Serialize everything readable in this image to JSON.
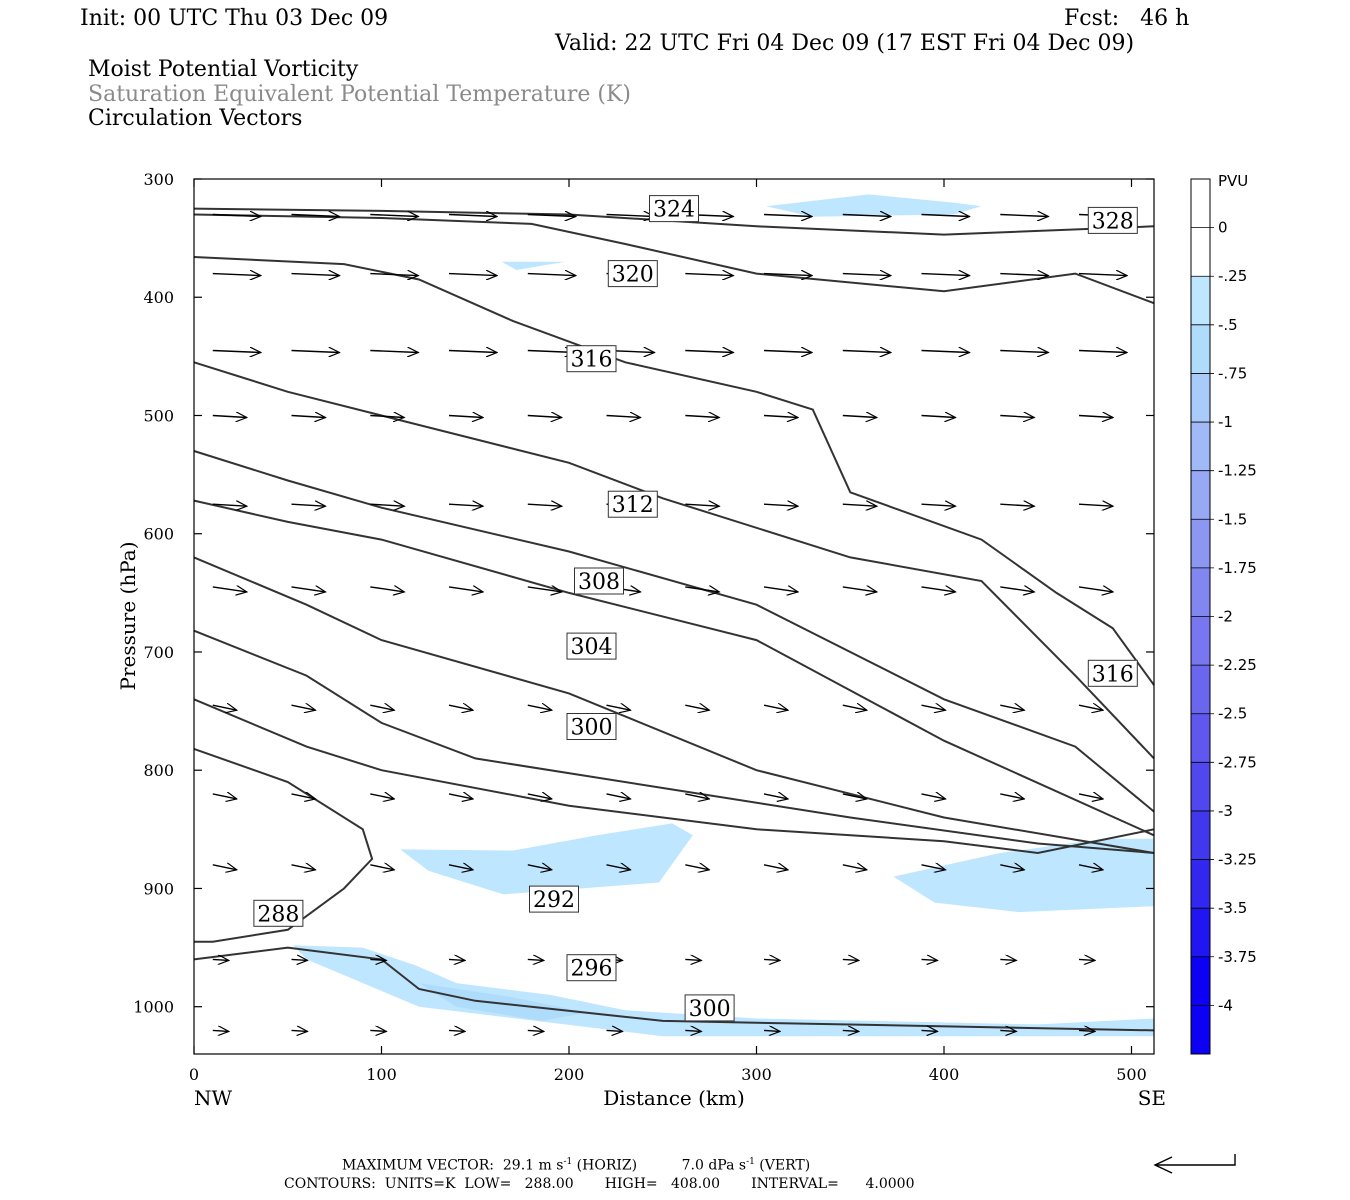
{
  "header": {
    "init": "Init: 00 UTC Thu 03 Dec 09",
    "fcst": "Fcst:   46 h",
    "valid": "Valid: 22 UTC Fri 04 Dec 09 (17 EST Fri 04 Dec 09)",
    "field1": "Moist Potential Vorticity",
    "field2": "Saturation Equivalent Potential Temperature (K)",
    "field3": "Circulation Vectors"
  },
  "footer": {
    "max_vector_label": "MAXIMUM VECTOR:",
    "max_vector_horiz": "29.1 m s",
    "horiz_tag": "(HORIZ)",
    "max_vector_vert": "7.0 dPa s",
    "vert_tag": "(VERT)",
    "exp": "-1",
    "contours": "CONTOURS:  UNITS=K  LOW=   288.00       HIGH=   408.00       INTERVAL=      4.0000"
  },
  "colors": {
    "contour": "#333333",
    "pv_shades": [
      "#ffffff",
      "#ffffff",
      "#bfe6ff",
      "#b0dcfc",
      "#a8cbfa",
      "#a0b9f7",
      "#97a8f5",
      "#8c97f2",
      "#8286f1",
      "#7876f0",
      "#6b66ee",
      "#5f57ee",
      "#5048ee",
      "#4138ee",
      "#3227ef",
      "#2016f2",
      "#0c00f5"
    ]
  },
  "chart_data": {
    "type": "contour",
    "xlabel": "Distance (km)",
    "ylabel": "Pressure (hPa)",
    "xlim": [
      0,
      512
    ],
    "ylim": [
      300,
      1040
    ],
    "x_ticks": [
      0,
      100,
      200,
      300,
      400,
      500
    ],
    "y_ticks": [
      300,
      400,
      500,
      600,
      700,
      800,
      900,
      1000
    ],
    "x_end_labels": [
      "NW",
      "SE"
    ],
    "colorbar": {
      "title": "PVU",
      "labels": [
        "0",
        "-.25",
        "-.5",
        "-.75",
        "-1",
        "-1.25",
        "-1.5",
        "-1.75",
        "-2",
        "-2.25",
        "-2.5",
        "-2.75",
        "-3",
        "-3.25",
        "-3.5",
        "-3.75",
        "-4"
      ]
    },
    "contour_labels": [
      {
        "text": "324",
        "x": 256,
        "p": 325
      },
      {
        "text": "328",
        "x": 490,
        "p": 335
      },
      {
        "text": "320",
        "x": 234,
        "p": 380
      },
      {
        "text": "316",
        "x": 212,
        "p": 452
      },
      {
        "text": "312",
        "x": 234,
        "p": 575
      },
      {
        "text": "308",
        "x": 216,
        "p": 640
      },
      {
        "text": "304",
        "x": 212,
        "p": 695
      },
      {
        "text": "300",
        "x": 212,
        "p": 763
      },
      {
        "text": "316",
        "x": 490,
        "p": 718
      },
      {
        "text": "288",
        "x": 45,
        "p": 921
      },
      {
        "text": "292",
        "x": 192,
        "p": 909
      },
      {
        "text": "296",
        "x": 212,
        "p": 967
      },
      {
        "text": "300",
        "x": 275,
        "p": 1001
      }
    ],
    "theta_e_contours": [
      {
        "level": 328,
        "points": [
          [
            0,
            325
          ],
          [
            100,
            327
          ],
          [
            200,
            330
          ],
          [
            300,
            340
          ],
          [
            400,
            347
          ],
          [
            512,
            340
          ]
        ]
      },
      {
        "level": 324,
        "points": [
          [
            0,
            330
          ],
          [
            100,
            333
          ],
          [
            180,
            338
          ],
          [
            230,
            355
          ],
          [
            300,
            380
          ],
          [
            400,
            395
          ],
          [
            470,
            380
          ],
          [
            512,
            405
          ]
        ]
      },
      {
        "level": 320,
        "points": [
          [
            0,
            366
          ],
          [
            80,
            372
          ],
          [
            120,
            385
          ],
          [
            170,
            420
          ],
          [
            230,
            455
          ],
          [
            300,
            480
          ],
          [
            330,
            495
          ],
          [
            350,
            565
          ],
          [
            420,
            605
          ],
          [
            460,
            650
          ],
          [
            490,
            680
          ],
          [
            512,
            728
          ]
        ]
      },
      {
        "level": 316,
        "points": [
          [
            0,
            455
          ],
          [
            50,
            480
          ],
          [
            100,
            500
          ],
          [
            200,
            540
          ],
          [
            250,
            570
          ],
          [
            350,
            620
          ],
          [
            420,
            640
          ],
          [
            470,
            720
          ],
          [
            512,
            790
          ]
        ]
      },
      {
        "level": 312,
        "points": [
          [
            0,
            530
          ],
          [
            50,
            555
          ],
          [
            100,
            578
          ],
          [
            200,
            615
          ],
          [
            300,
            660
          ],
          [
            400,
            740
          ],
          [
            470,
            780
          ],
          [
            512,
            835
          ]
        ]
      },
      {
        "level": 308,
        "points": [
          [
            0,
            572
          ],
          [
            50,
            590
          ],
          [
            100,
            605
          ],
          [
            200,
            650
          ],
          [
            300,
            690
          ],
          [
            400,
            775
          ],
          [
            512,
            855
          ]
        ]
      },
      {
        "level": 304,
        "points": [
          [
            0,
            620
          ],
          [
            60,
            660
          ],
          [
            100,
            690
          ],
          [
            200,
            735
          ],
          [
            300,
            800
          ],
          [
            400,
            840
          ],
          [
            512,
            870
          ]
        ]
      },
      {
        "level": 300,
        "points": [
          [
            0,
            682
          ],
          [
            60,
            720
          ],
          [
            100,
            760
          ],
          [
            150,
            790
          ],
          [
            250,
            815
          ],
          [
            350,
            840
          ],
          [
            450,
            862
          ],
          [
            512,
            870
          ]
        ]
      },
      {
        "level": 296,
        "points": [
          [
            0,
            740
          ],
          [
            60,
            780
          ],
          [
            100,
            800
          ],
          [
            200,
            830
          ],
          [
            300,
            850
          ],
          [
            400,
            860
          ],
          [
            450,
            870
          ],
          [
            512,
            850
          ]
        ]
      },
      {
        "level": 292,
        "points": [
          [
            0,
            782
          ],
          [
            50,
            810
          ],
          [
            90,
            850
          ],
          [
            95,
            875
          ],
          [
            80,
            900
          ],
          [
            50,
            935
          ],
          [
            10,
            945
          ],
          [
            0,
            945
          ]
        ]
      },
      {
        "level": 288,
        "points": [
          [
            0,
            960
          ],
          [
            50,
            950
          ],
          [
            100,
            960
          ],
          [
            120,
            985
          ],
          [
            150,
            995
          ],
          [
            250,
            1012
          ],
          [
            512,
            1020
          ]
        ]
      }
    ],
    "pv_areas": [
      {
        "value": -0.25,
        "points": [
          [
            305,
            323
          ],
          [
            360,
            313
          ],
          [
            405,
            320
          ],
          [
            420,
            323
          ],
          [
            405,
            330
          ],
          [
            330,
            332
          ]
        ]
      },
      {
        "value": -0.25,
        "points": [
          [
            164,
            370
          ],
          [
            198,
            370
          ],
          [
            172,
            377
          ]
        ]
      },
      {
        "value": -0.25,
        "points": [
          [
            110,
            867
          ],
          [
            170,
            868
          ],
          [
            215,
            855
          ],
          [
            255,
            845
          ],
          [
            266,
            855
          ],
          [
            248,
            895
          ],
          [
            165,
            905
          ],
          [
            125,
            885
          ]
        ]
      },
      {
        "value": -0.25,
        "points": [
          [
            373,
            890
          ],
          [
            430,
            870
          ],
          [
            485,
            858
          ],
          [
            512,
            858
          ],
          [
            512,
            915
          ],
          [
            440,
            920
          ],
          [
            395,
            912
          ]
        ]
      },
      {
        "value": -0.25,
        "points": [
          [
            53,
            948
          ],
          [
            90,
            950
          ],
          [
            118,
            965
          ],
          [
            140,
            980
          ],
          [
            190,
            990
          ],
          [
            230,
            1003
          ],
          [
            300,
            1010
          ],
          [
            450,
            1015
          ],
          [
            512,
            1010
          ],
          [
            512,
            1025
          ],
          [
            250,
            1025
          ],
          [
            120,
            1000
          ],
          [
            60,
            960
          ]
        ]
      },
      {
        "value": -0.5,
        "points": [
          [
            120,
            980
          ],
          [
            170,
            992
          ],
          [
            210,
            1005
          ],
          [
            185,
            1012
          ],
          [
            140,
            1000
          ]
        ]
      }
    ],
    "vectors": [
      {
        "p": 325,
        "dirs": [
          [
            0,
            8
          ]
        ]
      },
      {
        "p": 390,
        "dirs": [
          [
            0,
            6
          ]
        ]
      }
    ]
  }
}
